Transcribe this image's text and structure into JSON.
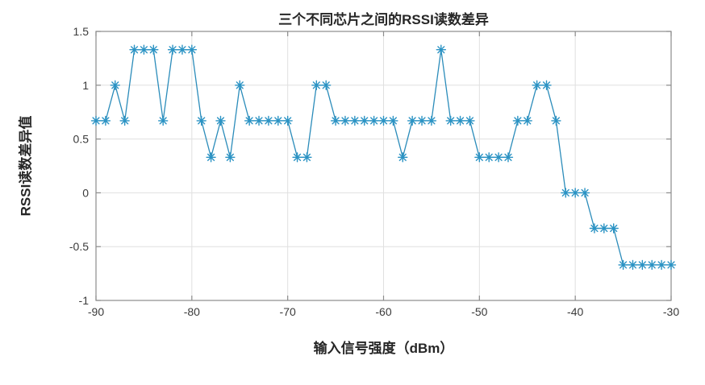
{
  "figure": {
    "background": "#ffffff"
  },
  "chart_data": {
    "type": "line",
    "title": "三个不同芯片之间的RSSI读数差异",
    "xlabel": "输入信号强度（dBm）",
    "ylabel": "RSSI读数差异值",
    "marker": "asterisk",
    "line_color": "#2b8cba",
    "marker_color": "#2b93c4",
    "grid_color": "#e0e0e0",
    "axis_color": "#8c8c8c",
    "text_color": "#3b3b3b",
    "grid": true,
    "legend": "none",
    "xlim": [
      -90,
      -30
    ],
    "ylim": [
      -1,
      1.5
    ],
    "x_ticks": [
      -90,
      -80,
      -70,
      -60,
      -50,
      -40,
      -30
    ],
    "x_tick_labels": [
      "-90",
      "-80",
      "-70",
      "-60",
      "-50",
      "-40",
      "-30"
    ],
    "y_ticks": [
      -1,
      -0.5,
      0,
      0.5,
      1,
      1.5
    ],
    "y_tick_labels": [
      "-1",
      "-0.5",
      "0",
      "0.5",
      "1",
      "1.5"
    ],
    "x": [
      -90,
      -89,
      -88,
      -87,
      -86,
      -85,
      -84,
      -83,
      -82,
      -81,
      -80,
      -79,
      -78,
      -77,
      -76,
      -75,
      -74,
      -73,
      -72,
      -71,
      -70,
      -69,
      -68,
      -67,
      -66,
      -65,
      -64,
      -63,
      -62,
      -61,
      -60,
      -59,
      -58,
      -57,
      -56,
      -55,
      -54,
      -53,
      -52,
      -51,
      -50,
      -49,
      -48,
      -47,
      -46,
      -45,
      -44,
      -43,
      -42,
      -41,
      -40,
      -39,
      -38,
      -37,
      -36,
      -35,
      -34,
      -33,
      -32,
      -31,
      -30
    ],
    "y": [
      0.67,
      0.67,
      1,
      0.67,
      1.33,
      1.33,
      1.33,
      0.67,
      1.33,
      1.33,
      1.33,
      0.67,
      0.33,
      0.67,
      0.33,
      1,
      0.67,
      0.67,
      0.67,
      0.67,
      0.67,
      0.33,
      0.33,
      1,
      1,
      0.67,
      0.67,
      0.67,
      0.67,
      0.67,
      0.67,
      0.67,
      0.33,
      0.67,
      0.67,
      0.67,
      1.33,
      0.67,
      0.67,
      0.67,
      0.33,
      0.33,
      0.33,
      0.33,
      0.67,
      0.67,
      1,
      1,
      0.67,
      0,
      0,
      0,
      -0.33,
      -0.33,
      -0.33,
      -0.67,
      -0.67,
      -0.67,
      -0.67,
      -0.67,
      -0.67
    ]
  }
}
